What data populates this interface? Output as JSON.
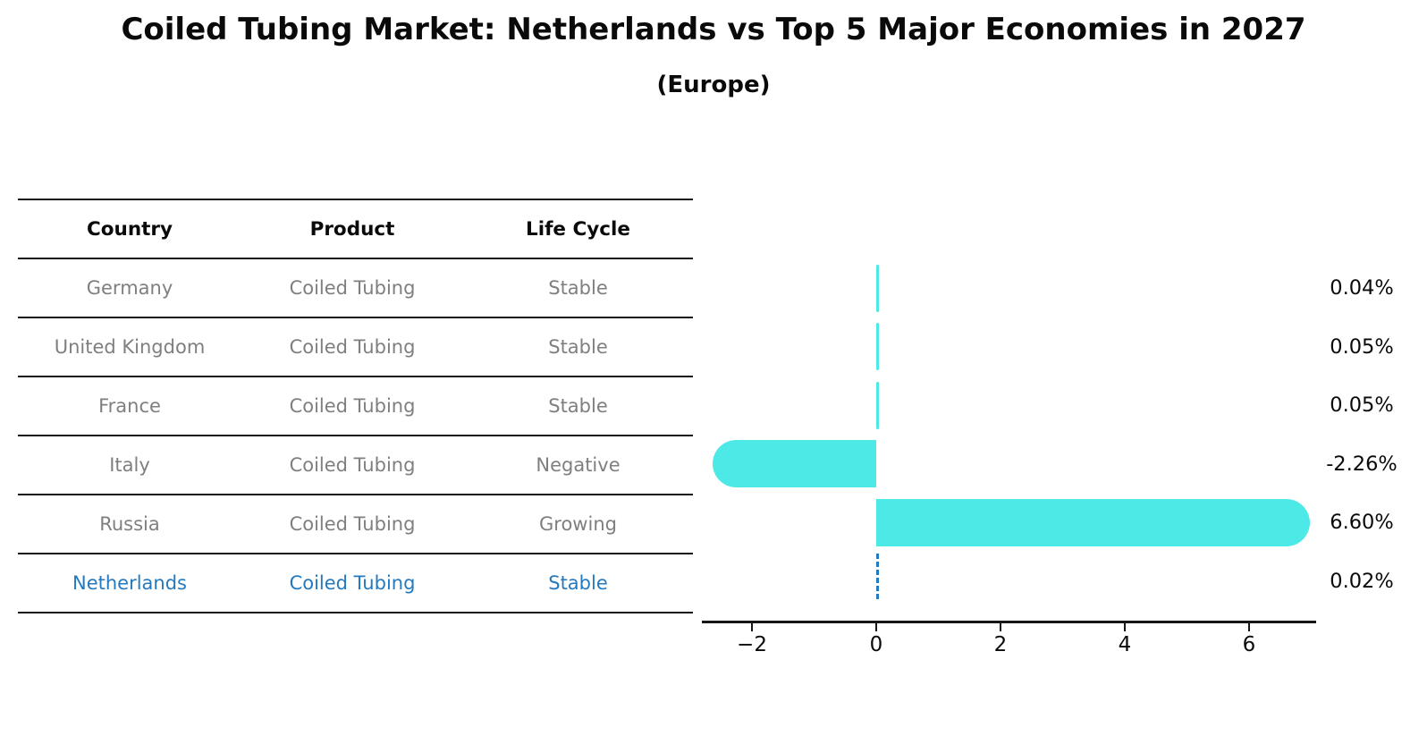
{
  "title": "Coiled Tubing Market: Netherlands vs Top 5 Major Economies in 2027",
  "subtitle": "(Europe)",
  "table": {
    "headers": [
      "Country",
      "Product",
      "Life Cycle"
    ],
    "rows": [
      {
        "country": "Germany",
        "product": "Coiled Tubing",
        "life_cycle": "Stable",
        "highlight": false
      },
      {
        "country": "United Kingdom",
        "product": "Coiled Tubing",
        "life_cycle": "Stable",
        "highlight": false
      },
      {
        "country": "France",
        "product": "Coiled Tubing",
        "life_cycle": "Stable",
        "highlight": false
      },
      {
        "country": "Italy",
        "product": "Coiled Tubing",
        "life_cycle": "Negative",
        "highlight": false
      },
      {
        "country": "Russia",
        "product": "Coiled Tubing",
        "life_cycle": "Growing",
        "highlight": false
      },
      {
        "country": "Netherlands",
        "product": "Coiled Tubing",
        "life_cycle": "Stable",
        "highlight": true
      }
    ]
  },
  "chart_data": {
    "type": "bar",
    "orientation": "horizontal",
    "title": "Coiled Tubing Market: Netherlands vs Top 5 Major Economies in 2027 (Europe)",
    "categories": [
      "Germany",
      "United Kingdom",
      "France",
      "Italy",
      "Russia",
      "Netherlands"
    ],
    "values": [
      0.04,
      0.05,
      0.05,
      -2.26,
      6.6,
      0.02
    ],
    "value_labels": [
      "0.04%",
      "0.05%",
      "0.05%",
      "-2.26%",
      "6.60%",
      "0.02%"
    ],
    "highlight_index": 5,
    "highlight_style": "dashed-outline",
    "xticks": [
      -2,
      0,
      2,
      4,
      6
    ],
    "xtick_labels": [
      "−2",
      "0",
      "2",
      "4",
      "6"
    ],
    "xlim": [
      -2.8,
      7.1
    ],
    "grid": false,
    "legend": "none",
    "xlabel": "",
    "ylabel": ""
  },
  "colors": {
    "bar_fill": "#4DE9E7",
    "highlight_blue": "#2579be",
    "text_black": "#0a0a0a",
    "text_gray": "#7f7f7f",
    "line_black": "#161616",
    "background": "#ffffff"
  }
}
